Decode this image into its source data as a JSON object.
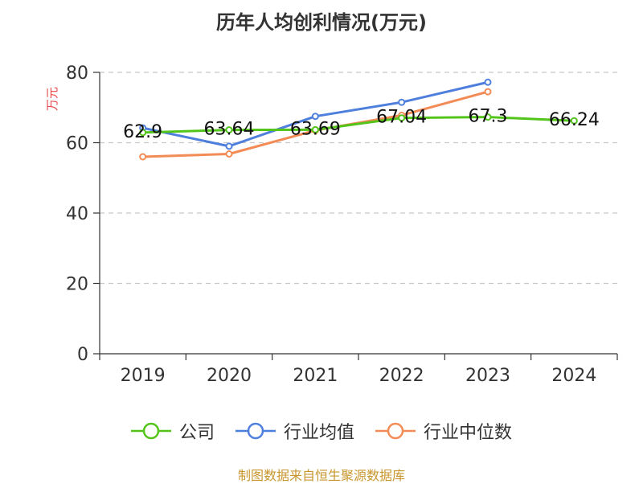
{
  "chart_data": {
    "type": "line",
    "title": "历年人均创利情况(万元)",
    "ylabel": "万元",
    "xlabel": "",
    "categories": [
      "2019",
      "2020",
      "2021",
      "2022",
      "2023",
      "2024"
    ],
    "ylim": [
      0,
      80
    ],
    "yticks": [
      0,
      20,
      40,
      60,
      80
    ],
    "grid": true,
    "legend_position": "bottom",
    "series": [
      {
        "name": "公司",
        "color": "#52c41a",
        "values": [
          62.9,
          63.64,
          63.69,
          67.04,
          67.3,
          66.24
        ],
        "labels": [
          "62.9",
          "63.64",
          "63.69",
          "67.04",
          "67.3",
          "66.24"
        ]
      },
      {
        "name": "行业均值",
        "color": "#4e7fdd",
        "values": [
          64.2,
          59.0,
          67.5,
          71.5,
          77.2,
          null
        ]
      },
      {
        "name": "行业中位数",
        "color": "#f28b55",
        "values": [
          56.0,
          56.8,
          63.5,
          67.8,
          74.5,
          null
        ]
      }
    ]
  },
  "footer": "制图数据来自恒生聚源数据库"
}
